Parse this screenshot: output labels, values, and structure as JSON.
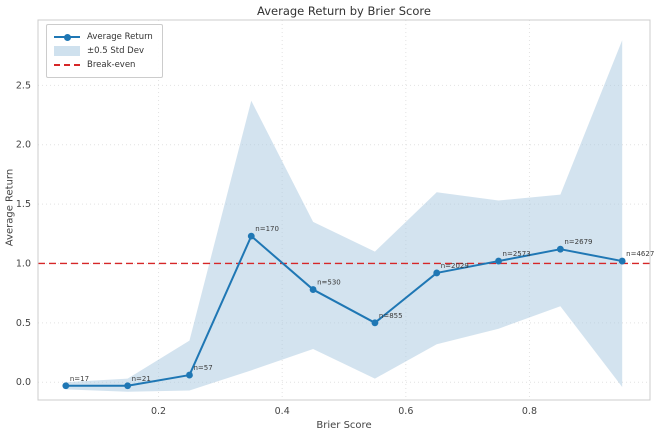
{
  "chart_data": {
    "type": "line",
    "title": "Average Return by Brier Score",
    "xlabel": "Brier Score",
    "ylabel": "Average Return",
    "x": [
      0.05,
      0.15,
      0.25,
      0.35,
      0.45,
      0.55,
      0.65,
      0.75,
      0.85,
      0.95
    ],
    "series": [
      {
        "name": "Average Return",
        "values": [
          -0.03,
          -0.03,
          0.06,
          1.23,
          0.78,
          0.5,
          0.92,
          1.02,
          1.12,
          1.02
        ]
      }
    ],
    "band": {
      "name": "±0.5 Std Dev",
      "upper": [
        0.0,
        0.03,
        0.35,
        2.37,
        1.35,
        1.1,
        1.6,
        1.53,
        1.58,
        2.88
      ],
      "lower": [
        -0.06,
        -0.08,
        -0.07,
        0.1,
        0.28,
        0.03,
        0.32,
        0.45,
        0.64,
        -0.04
      ]
    },
    "break_even": {
      "label": "Break-even",
      "y": 1.0
    },
    "point_labels": [
      "n=17",
      "n=21",
      "n=57",
      "n=170",
      "n=530",
      "n=855",
      "n=2029",
      "n=2573",
      "n=2679",
      "n=4627"
    ],
    "legend": {
      "entries": [
        "Average Return",
        "±0.5 Std Dev",
        "Break-even"
      ],
      "position": "upper left"
    },
    "xticks": [
      "0.2",
      "0.4",
      "0.6",
      "0.8"
    ],
    "xtick_values": [
      0.2,
      0.4,
      0.6,
      0.8
    ],
    "yticks": [
      "0.0",
      "0.5",
      "1.0",
      "1.5",
      "2.0",
      "2.5"
    ],
    "ytick_values": [
      0.0,
      0.5,
      1.0,
      1.5,
      2.0,
      2.5
    ],
    "xlim": [
      0.005,
      0.995
    ],
    "ylim": [
      -0.15,
      3.05
    ],
    "grid": "dotted",
    "colors": {
      "line": "#1f77b4",
      "band": "#a8c8e0",
      "break_even": "#d62728",
      "grid": "#e2e2e2",
      "spine": "#cccccc",
      "tick_text": "#444444",
      "annotation_text": "#3a3a3a"
    }
  }
}
